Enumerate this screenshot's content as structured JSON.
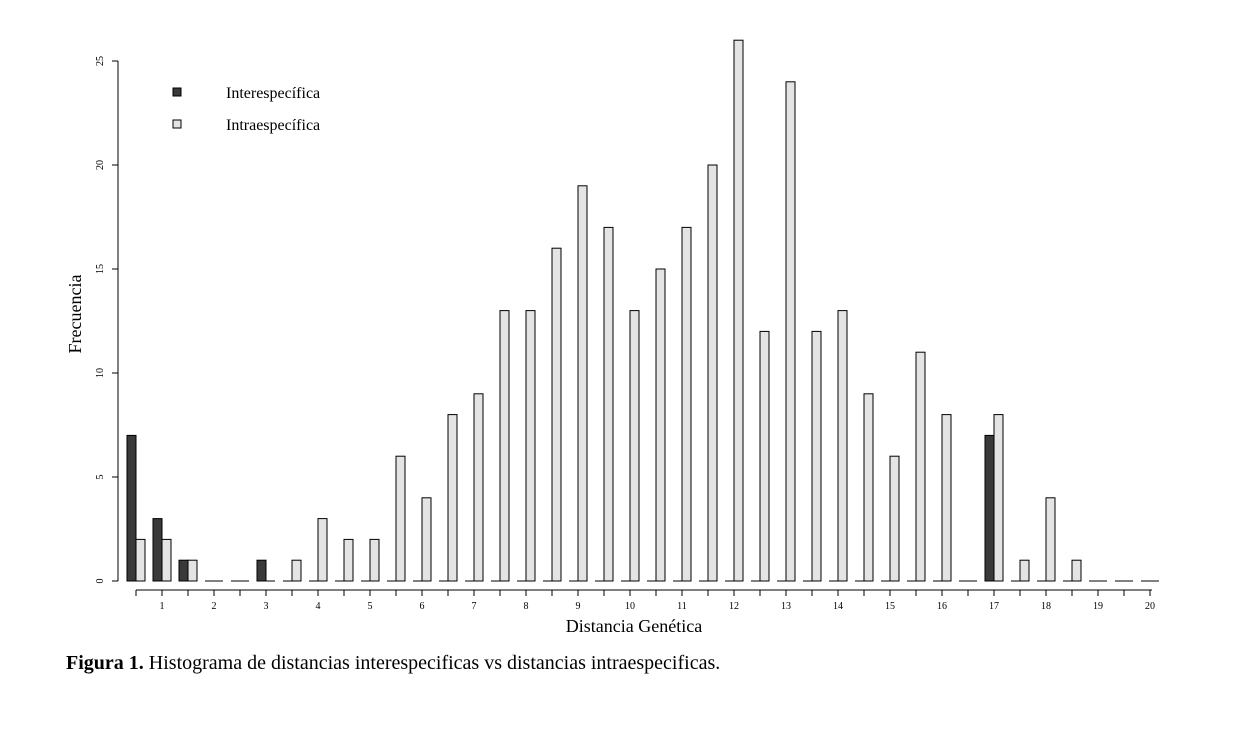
{
  "chart_data": {
    "type": "bar",
    "xlabel": "Distancia Genética",
    "ylabel": "Frecuencia",
    "ylim": [
      0,
      26
    ],
    "yticks": [
      "0",
      "5",
      "10",
      "15",
      "20",
      "25"
    ],
    "xtick_labels": [
      "1",
      "2",
      "3",
      "4",
      "5",
      "6",
      "7",
      "8",
      "9",
      "10",
      "11",
      "12",
      "13",
      "14",
      "15",
      "16",
      "17",
      "18",
      "19",
      "20"
    ],
    "categories": [
      "0-0.5",
      "0.5-1",
      "1-1.5",
      "1.5-2",
      "2-2.5",
      "2.5-3",
      "3-3.5",
      "3.5-4",
      "4-4.5",
      "4.5-5",
      "5-5.5",
      "5.5-6",
      "6-6.5",
      "6.5-7",
      "7-7.5",
      "7.5-8",
      "8-8.5",
      "8.5-9",
      "9-9.5",
      "9.5-10",
      "10-10.5",
      "10.5-11",
      "11-11.5",
      "11.5-12",
      "12-12.5",
      "12.5-13",
      "13-13.5",
      "13.5-14",
      "14-14.5",
      "14.5-15",
      "15-15.5",
      "15.5-16",
      "16-16.5",
      "16.5-17",
      "17-17.5",
      "17.5-18",
      "18-18.5",
      "18.5-19",
      "19-19.5",
      "19.5-20"
    ],
    "series": [
      {
        "name": "Interespecífica",
        "color": "#3a3a3a",
        "values": [
          7,
          3,
          1,
          0,
          0,
          1,
          0,
          0,
          0,
          0,
          0,
          0,
          0,
          0,
          0,
          0,
          0,
          0,
          0,
          0,
          0,
          0,
          0,
          0,
          0,
          0,
          0,
          0,
          0,
          0,
          0,
          0,
          0,
          7,
          0,
          0,
          0,
          0,
          0,
          0
        ]
      },
      {
        "name": "Intraespecífica",
        "color": "#e4e4e4",
        "values": [
          2,
          2,
          1,
          0,
          0,
          0,
          1,
          3,
          2,
          2,
          6,
          4,
          8,
          9,
          13,
          13,
          16,
          19,
          17,
          13,
          15,
          17,
          20,
          26,
          12,
          24,
          12,
          13,
          9,
          6,
          11,
          8,
          0,
          8,
          1,
          4,
          1,
          0,
          0,
          0
        ]
      }
    ],
    "grid": false,
    "legend_position": "top-left"
  },
  "caption": {
    "label": "Figura 1.",
    "text": "Histograma de distancias interespecificas vs distancias intraespecificas."
  }
}
